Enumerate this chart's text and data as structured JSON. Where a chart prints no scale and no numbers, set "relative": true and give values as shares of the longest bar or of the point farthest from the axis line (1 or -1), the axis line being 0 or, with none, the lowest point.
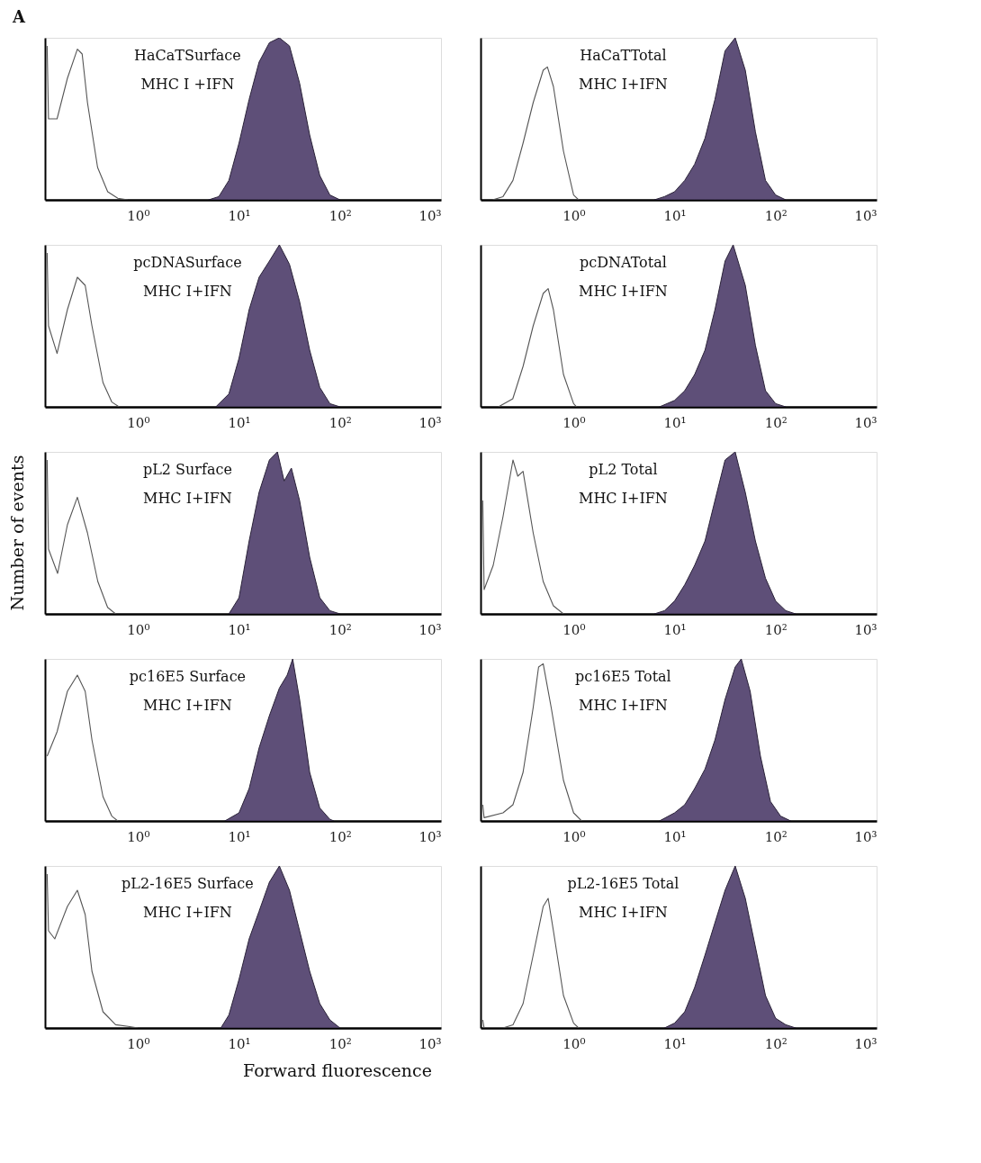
{
  "chart_data": [
    {
      "type": "area",
      "title": "HaCaTSurface",
      "subtitle": "MHC I +IFN",
      "annotations": [
        "A"
      ],
      "relative": true,
      "log": "x",
      "grid": false,
      "tick_labels": "x",
      "xlim": [
        0.12,
        1000
      ],
      "xticks": [
        {
          "value": 1,
          "label": "10⁰"
        },
        {
          "value": 10,
          "label": "10¹"
        },
        {
          "value": 100,
          "label": "10²"
        },
        {
          "value": 1000,
          "label": "10³"
        }
      ],
      "series": [
        {
          "type": "line",
          "color": "#555555",
          "x": [
            0.126,
            0.13,
            0.158,
            0.2,
            0.251,
            0.28,
            0.316,
            0.398,
            0.501,
            0.631,
            0.794
          ],
          "values": [
            0.95,
            0.5,
            0.5,
            0.75,
            0.93,
            0.9,
            0.6,
            0.2,
            0.05,
            0.01,
            0
          ]
        },
        {
          "color": "#5e4f78",
          "x": [
            5.01,
            6.31,
            7.94,
            10,
            12.6,
            15.8,
            20,
            25.1,
            31.6,
            39.8,
            50.1,
            63.1,
            79.4,
            100
          ],
          "values": [
            0,
            0.02,
            0.12,
            0.35,
            0.62,
            0.85,
            0.97,
            1.0,
            0.95,
            0.72,
            0.4,
            0.15,
            0.03,
            0
          ]
        }
      ]
    },
    {
      "type": "area",
      "title": "HaCaTTotal",
      "subtitle": "MHC I+IFN",
      "relative": true,
      "log": "x",
      "grid": false,
      "tick_labels": "x",
      "xlim": [
        0.12,
        1000
      ],
      "xticks": [
        {
          "value": 1,
          "label": "10⁰"
        },
        {
          "value": 10,
          "label": "10¹"
        },
        {
          "value": 100,
          "label": "10²"
        },
        {
          "value": 1000,
          "label": "10³"
        }
      ],
      "series": [
        {
          "type": "line",
          "color": "#555555",
          "x": [
            0.158,
            0.2,
            0.251,
            0.316,
            0.398,
            0.5,
            0.55,
            0.631,
            0.794,
            1.0,
            1.12
          ],
          "values": [
            0,
            0.02,
            0.12,
            0.35,
            0.6,
            0.8,
            0.82,
            0.7,
            0.3,
            0.03,
            0
          ]
        },
        {
          "color": "#5e4f78",
          "x": [
            6.31,
            7.94,
            10,
            12.6,
            15.8,
            20,
            25.1,
            31.6,
            39.8,
            50.1,
            63.1,
            79.4,
            100,
            126
          ],
          "values": [
            0,
            0.02,
            0.05,
            0.12,
            0.22,
            0.38,
            0.62,
            0.92,
            1.0,
            0.8,
            0.42,
            0.12,
            0.03,
            0
          ]
        }
      ]
    },
    {
      "type": "area",
      "title": "pcDNASurface",
      "subtitle": "MHC I+IFN",
      "relative": true,
      "log": "x",
      "grid": false,
      "tick_labels": "x",
      "xlim": [
        0.12,
        1000
      ],
      "xticks": [
        {
          "value": 1,
          "label": "10⁰"
        },
        {
          "value": 10,
          "label": "10¹"
        },
        {
          "value": 100,
          "label": "10²"
        },
        {
          "value": 1000,
          "label": "10³"
        }
      ],
      "series": [
        {
          "type": "line",
          "color": "#555555",
          "x": [
            0.126,
            0.13,
            0.158,
            0.2,
            0.251,
            0.3,
            0.35,
            0.45,
            0.55,
            0.65
          ],
          "values": [
            0.95,
            0.5,
            0.33,
            0.6,
            0.8,
            0.75,
            0.5,
            0.15,
            0.03,
            0
          ]
        },
        {
          "color": "#5e4f78",
          "x": [
            5.89,
            7.94,
            10,
            12.6,
            15.8,
            20,
            25.1,
            31.6,
            39.8,
            50.1,
            63.1,
            79.4,
            100
          ],
          "values": [
            0,
            0.08,
            0.3,
            0.6,
            0.8,
            0.9,
            1.0,
            0.88,
            0.65,
            0.35,
            0.12,
            0.02,
            0
          ]
        }
      ]
    },
    {
      "type": "area",
      "title": "pcDNATotal",
      "subtitle": "MHC I+IFN",
      "relative": true,
      "log": "x",
      "grid": false,
      "tick_labels": "x",
      "xlim": [
        0.12,
        1000
      ],
      "xticks": [
        {
          "value": 1,
          "label": "10⁰"
        },
        {
          "value": 10,
          "label": "10¹"
        },
        {
          "value": 100,
          "label": "10²"
        },
        {
          "value": 1000,
          "label": "10³"
        }
      ],
      "series": [
        {
          "type": "line",
          "color": "#555555",
          "x": [
            0.18,
            0.25,
            0.316,
            0.398,
            0.5,
            0.56,
            0.631,
            0.794,
            1.0,
            1.07
          ],
          "values": [
            0,
            0.05,
            0.25,
            0.5,
            0.7,
            0.73,
            0.6,
            0.2,
            0.02,
            0
          ]
        },
        {
          "color": "#5e4f78",
          "x": [
            7.08,
            10,
            12.6,
            15.8,
            20,
            25.1,
            31.6,
            38,
            50.1,
            63.1,
            79.4,
            100,
            126
          ],
          "values": [
            0,
            0.04,
            0.1,
            0.2,
            0.35,
            0.6,
            0.9,
            1.0,
            0.75,
            0.38,
            0.1,
            0.02,
            0
          ]
        }
      ]
    },
    {
      "type": "area",
      "title": "pL2 Surface",
      "subtitle": "MHC I+IFN",
      "ylabel": "Number of events",
      "relative": true,
      "log": "x",
      "grid": false,
      "tick_labels": "x",
      "xlim": [
        0.12,
        1000
      ],
      "xticks": [
        {
          "value": 1,
          "label": "10⁰"
        },
        {
          "value": 10,
          "label": "10¹"
        },
        {
          "value": 100,
          "label": "10²"
        },
        {
          "value": 1000,
          "label": "10³"
        }
      ],
      "series": [
        {
          "type": "line",
          "color": "#555555",
          "x": [
            0.126,
            0.13,
            0.16,
            0.2,
            0.251,
            0.316,
            0.4,
            0.5,
            0.6
          ],
          "values": [
            0.95,
            0.4,
            0.25,
            0.55,
            0.72,
            0.5,
            0.2,
            0.04,
            0
          ]
        },
        {
          "color": "#5e4f78",
          "x": [
            7.94,
            10,
            12.6,
            15.8,
            20,
            24,
            28,
            33,
            39.8,
            50.1,
            63.1,
            79.4,
            100
          ],
          "values": [
            0,
            0.1,
            0.45,
            0.75,
            0.95,
            1.0,
            0.82,
            0.9,
            0.7,
            0.35,
            0.1,
            0.02,
            0
          ]
        }
      ]
    },
    {
      "type": "area",
      "title": "pL2 Total",
      "subtitle": "MHC I+IFN",
      "relative": true,
      "log": "x",
      "grid": false,
      "tick_labels": "x",
      "xlim": [
        0.12,
        1000
      ],
      "xticks": [
        {
          "value": 1,
          "label": "10⁰"
        },
        {
          "value": 10,
          "label": "10¹"
        },
        {
          "value": 100,
          "label": "10²"
        },
        {
          "value": 1000,
          "label": "10³"
        }
      ],
      "series": [
        {
          "type": "line",
          "color": "#555555",
          "x": [
            0.126,
            0.13,
            0.16,
            0.2,
            0.251,
            0.28,
            0.316,
            0.398,
            0.5,
            0.631,
            0.794
          ],
          "values": [
            0.7,
            0.15,
            0.3,
            0.6,
            0.95,
            0.85,
            0.88,
            0.5,
            0.2,
            0.05,
            0
          ]
        },
        {
          "color": "#5e4f78",
          "x": [
            6.31,
            7.94,
            10,
            12.6,
            15.8,
            20,
            25.1,
            31.6,
            39.8,
            50.1,
            63.1,
            79.4,
            100,
            126,
            158
          ],
          "values": [
            0,
            0.02,
            0.08,
            0.18,
            0.3,
            0.45,
            0.7,
            0.95,
            1.0,
            0.75,
            0.45,
            0.22,
            0.08,
            0.02,
            0
          ]
        }
      ]
    },
    {
      "type": "area",
      "title": "pc16E5 Surface",
      "subtitle": "MHC I+IFN",
      "relative": true,
      "log": "x",
      "grid": false,
      "tick_labels": "x",
      "xlim": [
        0.12,
        1000
      ],
      "xticks": [
        {
          "value": 1,
          "label": "10⁰"
        },
        {
          "value": 10,
          "label": "10¹"
        },
        {
          "value": 100,
          "label": "10²"
        },
        {
          "value": 1000,
          "label": "10³"
        }
      ],
      "series": [
        {
          "type": "line",
          "color": "#555555",
          "x": [
            0.126,
            0.158,
            0.2,
            0.251,
            0.3,
            0.35,
            0.45,
            0.55,
            0.63
          ],
          "values": [
            0.4,
            0.55,
            0.8,
            0.9,
            0.8,
            0.5,
            0.15,
            0.03,
            0
          ]
        },
        {
          "color": "#5e4f78",
          "x": [
            7.24,
            10,
            12.6,
            15.8,
            20,
            25.1,
            30,
            34,
            39.8,
            50.1,
            63.1,
            79.4,
            87
          ],
          "values": [
            0,
            0.05,
            0.2,
            0.45,
            0.65,
            0.82,
            0.9,
            1.0,
            0.75,
            0.3,
            0.08,
            0.01,
            0
          ]
        }
      ]
    },
    {
      "type": "area",
      "title": "pc16E5 Total",
      "subtitle": "MHC I+IFN",
      "relative": true,
      "log": "x",
      "grid": false,
      "tick_labels": "x",
      "xlim": [
        0.12,
        1000
      ],
      "xticks": [
        {
          "value": 1,
          "label": "10⁰"
        },
        {
          "value": 10,
          "label": "10¹"
        },
        {
          "value": 100,
          "label": "10²"
        },
        {
          "value": 1000,
          "label": "10³"
        }
      ],
      "series": [
        {
          "type": "line",
          "color": "#555555",
          "x": [
            0.126,
            0.13,
            0.2,
            0.251,
            0.316,
            0.398,
            0.45,
            0.5,
            0.6,
            0.794,
            1.0,
            1.2
          ],
          "values": [
            0.1,
            0.02,
            0.05,
            0.1,
            0.3,
            0.7,
            0.95,
            0.97,
            0.7,
            0.25,
            0.05,
            0
          ]
        },
        {
          "color": "#5e4f78",
          "x": [
            7.08,
            10,
            12.6,
            15.8,
            20,
            25.1,
            31.6,
            39.8,
            45.7,
            56,
            70.8,
            89,
            112,
            141
          ],
          "values": [
            0,
            0.05,
            0.1,
            0.2,
            0.32,
            0.5,
            0.75,
            0.95,
            1.0,
            0.8,
            0.4,
            0.12,
            0.03,
            0
          ]
        }
      ]
    },
    {
      "type": "area",
      "title": "pL2-16E5 Surface",
      "subtitle": "MHC I+IFN",
      "xlabel": "Forward fluorescence",
      "relative": true,
      "log": "x",
      "grid": false,
      "tick_labels": "x",
      "xlim": [
        0.12,
        1000
      ],
      "xticks": [
        {
          "value": 1,
          "label": "10⁰"
        },
        {
          "value": 10,
          "label": "10¹"
        },
        {
          "value": 100,
          "label": "10²"
        },
        {
          "value": 1000,
          "label": "10³"
        }
      ],
      "series": [
        {
          "type": "line",
          "color": "#555555",
          "x": [
            0.126,
            0.13,
            0.15,
            0.2,
            0.251,
            0.3,
            0.35,
            0.45,
            0.6,
            0.8,
            1.0
          ],
          "values": [
            0.95,
            0.6,
            0.55,
            0.75,
            0.85,
            0.7,
            0.35,
            0.1,
            0.02,
            0.01,
            0
          ]
        },
        {
          "color": "#5e4f78",
          "x": [
            6.61,
            7.94,
            10,
            12.6,
            15.8,
            20,
            25.1,
            31.6,
            39.8,
            50.1,
            63.1,
            79.4,
            100
          ],
          "values": [
            0,
            0.08,
            0.3,
            0.55,
            0.72,
            0.9,
            1.0,
            0.85,
            0.6,
            0.35,
            0.15,
            0.05,
            0
          ]
        }
      ]
    },
    {
      "type": "area",
      "title": "pL2-16E5 Total",
      "subtitle": "MHC I+IFN",
      "relative": true,
      "log": "x",
      "grid": false,
      "tick_labels": "x",
      "xlim": [
        0.12,
        1000
      ],
      "xticks": [
        {
          "value": 1,
          "label": "10⁰"
        },
        {
          "value": 10,
          "label": "10¹"
        },
        {
          "value": 100,
          "label": "10²"
        },
        {
          "value": 1000,
          "label": "10³"
        }
      ],
      "series": [
        {
          "type": "line",
          "color": "#555555",
          "x": [
            0.126,
            0.13,
            0.2,
            0.251,
            0.316,
            0.398,
            0.5,
            0.56,
            0.631,
            0.794,
            1.0,
            1.12
          ],
          "values": [
            0.05,
            0,
            0,
            0.02,
            0.15,
            0.45,
            0.75,
            0.8,
            0.6,
            0.2,
            0.03,
            0
          ]
        },
        {
          "color": "#5e4f78",
          "x": [
            7.94,
            10,
            12.6,
            15.8,
            20,
            25.1,
            31.6,
            39.8,
            50.1,
            63.1,
            79.4,
            100,
            126,
            158
          ],
          "values": [
            0,
            0.03,
            0.1,
            0.25,
            0.45,
            0.65,
            0.85,
            1.0,
            0.8,
            0.5,
            0.2,
            0.06,
            0.02,
            0
          ]
        }
      ]
    }
  ]
}
